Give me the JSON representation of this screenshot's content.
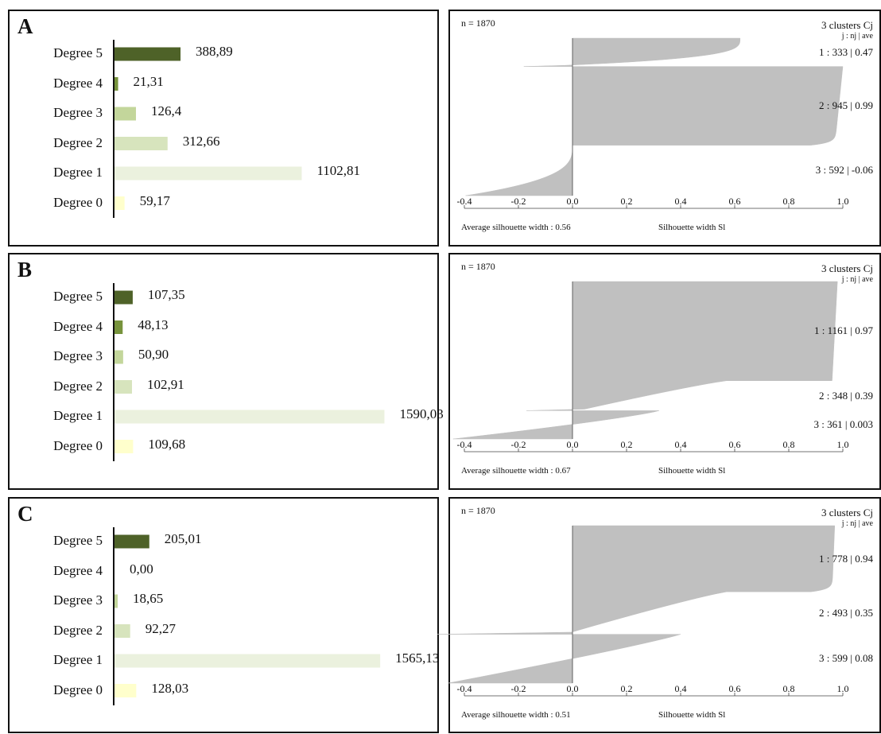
{
  "colors": {
    "degree5": "#4e6228",
    "degree4": "#77933c",
    "degree3": "#c3d69b",
    "degree2": "#d7e4bd",
    "degree1": "#ebf1de",
    "degree0": "#ffffcc",
    "silhouette": "#c0c0c0"
  },
  "chart_data": [
    {
      "type": "bar",
      "panel_letter": "A",
      "categories": [
        "Degree 5",
        "Degree 4",
        "Degree 3",
        "Degree 2",
        "Degree 1",
        "Degree 0"
      ],
      "values": [
        388.89,
        21.31,
        126.4,
        312.66,
        1102.81,
        59.17
      ],
      "value_labels": [
        "388,89",
        "21,31",
        "126,4",
        "312,66",
        "1102,81",
        "59,17"
      ]
    },
    {
      "type": "area",
      "n_label": "n = 1870",
      "clusters_title": "3 clusters Cj",
      "clusters_subtitle": "j : nj | ave",
      "cluster_labels": [
        "1 : 333 | 0.47",
        "2 : 945 | 0.99",
        "3 : 592 | -0.06"
      ],
      "xlim": [
        -0.4,
        1.0
      ],
      "x_ticks": [
        "-0.4",
        "-0.2",
        "0.0",
        "0.2",
        "0.4",
        "0.6",
        "0.8",
        "1.0"
      ],
      "avg_label": "Average silhouette width : 0.56",
      "xlabel": "Silhouette width Sl"
    },
    {
      "type": "bar",
      "panel_letter": "B",
      "categories": [
        "Degree 5",
        "Degree 4",
        "Degree 3",
        "Degree 2",
        "Degree 1",
        "Degree 0"
      ],
      "values": [
        107.35,
        48.13,
        50.9,
        102.91,
        1590.03,
        109.68
      ],
      "value_labels": [
        "107,35",
        "48,13",
        "50,90",
        "102,91",
        "1590,03",
        "109,68"
      ]
    },
    {
      "type": "area",
      "n_label": "n = 1870",
      "clusters_title": "3 clusters Cj",
      "clusters_subtitle": "j : nj | ave",
      "cluster_labels": [
        "1 : 1161 | 0.97",
        "2 : 348 | 0.39",
        "3 : 361 | 0.003"
      ],
      "xlim": [
        -0.4,
        1.0
      ],
      "x_ticks": [
        "-0.4",
        "-0.2",
        "0.0",
        "0.2",
        "0.4",
        "0.6",
        "0.8",
        "1.0"
      ],
      "avg_label": "Average silhouette width : 0.67",
      "xlabel": "Silhouette width Sl"
    },
    {
      "type": "bar",
      "panel_letter": "C",
      "categories": [
        "Degree 5",
        "Degree 4",
        "Degree 3",
        "Degree 2",
        "Degree 1",
        "Degree 0"
      ],
      "values": [
        205.01,
        0.0,
        18.65,
        92.27,
        1565.13,
        128.03
      ],
      "value_labels": [
        "205,01",
        "0,00",
        "18,65",
        "92,27",
        "1565,13",
        "128,03"
      ]
    },
    {
      "type": "area",
      "n_label": "n = 1870",
      "clusters_title": "3 clusters Cj",
      "clusters_subtitle": "j : nj | ave",
      "cluster_labels": [
        "1 : 778 | 0.94",
        "2 : 493 | 0.35",
        "3 : 599 | 0.08"
      ],
      "xlim": [
        -0.4,
        1.0
      ],
      "x_ticks": [
        "-0.4",
        "-0.2",
        "0.0",
        "0.2",
        "0.4",
        "0.6",
        "0.8",
        "1.0"
      ],
      "avg_label": "Average silhouette width : 0.51",
      "xlabel": "Silhouette width Sl"
    }
  ]
}
